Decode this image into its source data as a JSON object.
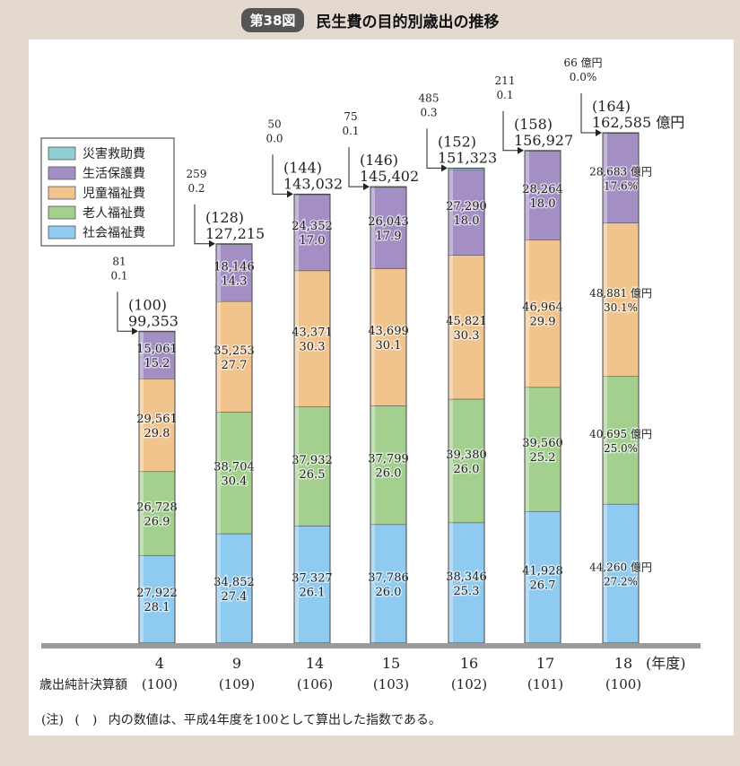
{
  "figure": {
    "badge": "第38図",
    "title": "民生費の目的別歳出の推移"
  },
  "footnote": {
    "mark": "(注)",
    "paren": "(　)",
    "text": "内の数値は、平成4年度を100として算出した指数である。"
  },
  "chart_data": {
    "type": "bar",
    "stacked": true,
    "categories": [
      "4",
      "9",
      "14",
      "15",
      "16",
      "17",
      "18"
    ],
    "x_unit_label": "(年度)",
    "row_label": "歳出純計決算額",
    "row_indices": [
      "(100)",
      "(109)",
      "(106)",
      "(103)",
      "(102)",
      "(101)",
      "(100)"
    ],
    "series_order_bottom_to_top": [
      "社会福祉費",
      "老人福祉費",
      "児童福祉費",
      "生活保護費",
      "災害救助費"
    ],
    "legend": [
      "災害救助費",
      "生活保護費",
      "児童福祉費",
      "老人福祉費",
      "社会福祉費"
    ],
    "colors": {
      "災害救助費": "#8fcfd4",
      "生活保護費": "#a48fc4",
      "児童福祉費": "#f2c48d",
      "老人福祉費": "#a3cf8f",
      "社会福祉費": "#8fcaf0"
    },
    "series": [
      {
        "name": "社会福祉費",
        "values": [
          27922,
          34852,
          37327,
          37786,
          38346,
          41928,
          44260
        ],
        "labels_value": [
          "27,922",
          "34,852",
          "37,327",
          "37,786",
          "38,346",
          "41,928",
          "44,260 億円"
        ],
        "labels_pct": [
          "28.1",
          "27.4",
          "26.1",
          "26.0",
          "25.3",
          "26.7",
          "27.2%"
        ]
      },
      {
        "name": "老人福祉費",
        "values": [
          26728,
          38704,
          37932,
          37799,
          39380,
          39560,
          40695
        ],
        "labels_value": [
          "26,728",
          "38,704",
          "37,932",
          "37,799",
          "39,380",
          "39,560",
          "40,695 億円"
        ],
        "labels_pct": [
          "26.9",
          "30.4",
          "26.5",
          "26.0",
          "26.0",
          "25.2",
          "25.0%"
        ]
      },
      {
        "name": "児童福祉費",
        "values": [
          29561,
          35253,
          43371,
          43699,
          45821,
          46964,
          48881
        ],
        "labels_value": [
          "29,561",
          "35,253",
          "43,371",
          "43,699",
          "45,821",
          "46,964",
          "48,881 億円"
        ],
        "labels_pct": [
          "29.8",
          "27.7",
          "30.3",
          "30.1",
          "30.3",
          "29.9",
          "30.1%"
        ]
      },
      {
        "name": "生活保護費",
        "values": [
          15061,
          18146,
          24352,
          26043,
          27290,
          28264,
          28683
        ],
        "labels_value": [
          "15,061",
          "18,146",
          "24,352",
          "26,043",
          "27,290",
          "28,264",
          "28,683 億円"
        ],
        "labels_pct": [
          "15.2",
          "14.3",
          "17.0",
          "17.9",
          "18.0",
          "18.0",
          "17.6%"
        ]
      },
      {
        "name": "災害救助費",
        "values": [
          81,
          259,
          50,
          75,
          485,
          211,
          66
        ],
        "labels_value": [
          "81",
          "259",
          "50",
          "75",
          "485",
          "211",
          "66 億円"
        ],
        "labels_pct": [
          "0.1",
          "0.2",
          "0.0",
          "0.1",
          "0.3",
          "0.1",
          "0.0%"
        ]
      }
    ],
    "totals": [
      99353,
      127215,
      143032,
      145402,
      151323,
      156927,
      162585
    ],
    "total_labels": [
      "99,353",
      "127,215",
      "143,032",
      "145,402",
      "151,323",
      "156,927",
      "162,585 億円"
    ],
    "total_indices": [
      "(100)",
      "(128)",
      "(144)",
      "(146)",
      "(152)",
      "(158)",
      "(164)"
    ],
    "ylim": [
      0,
      162585
    ]
  }
}
